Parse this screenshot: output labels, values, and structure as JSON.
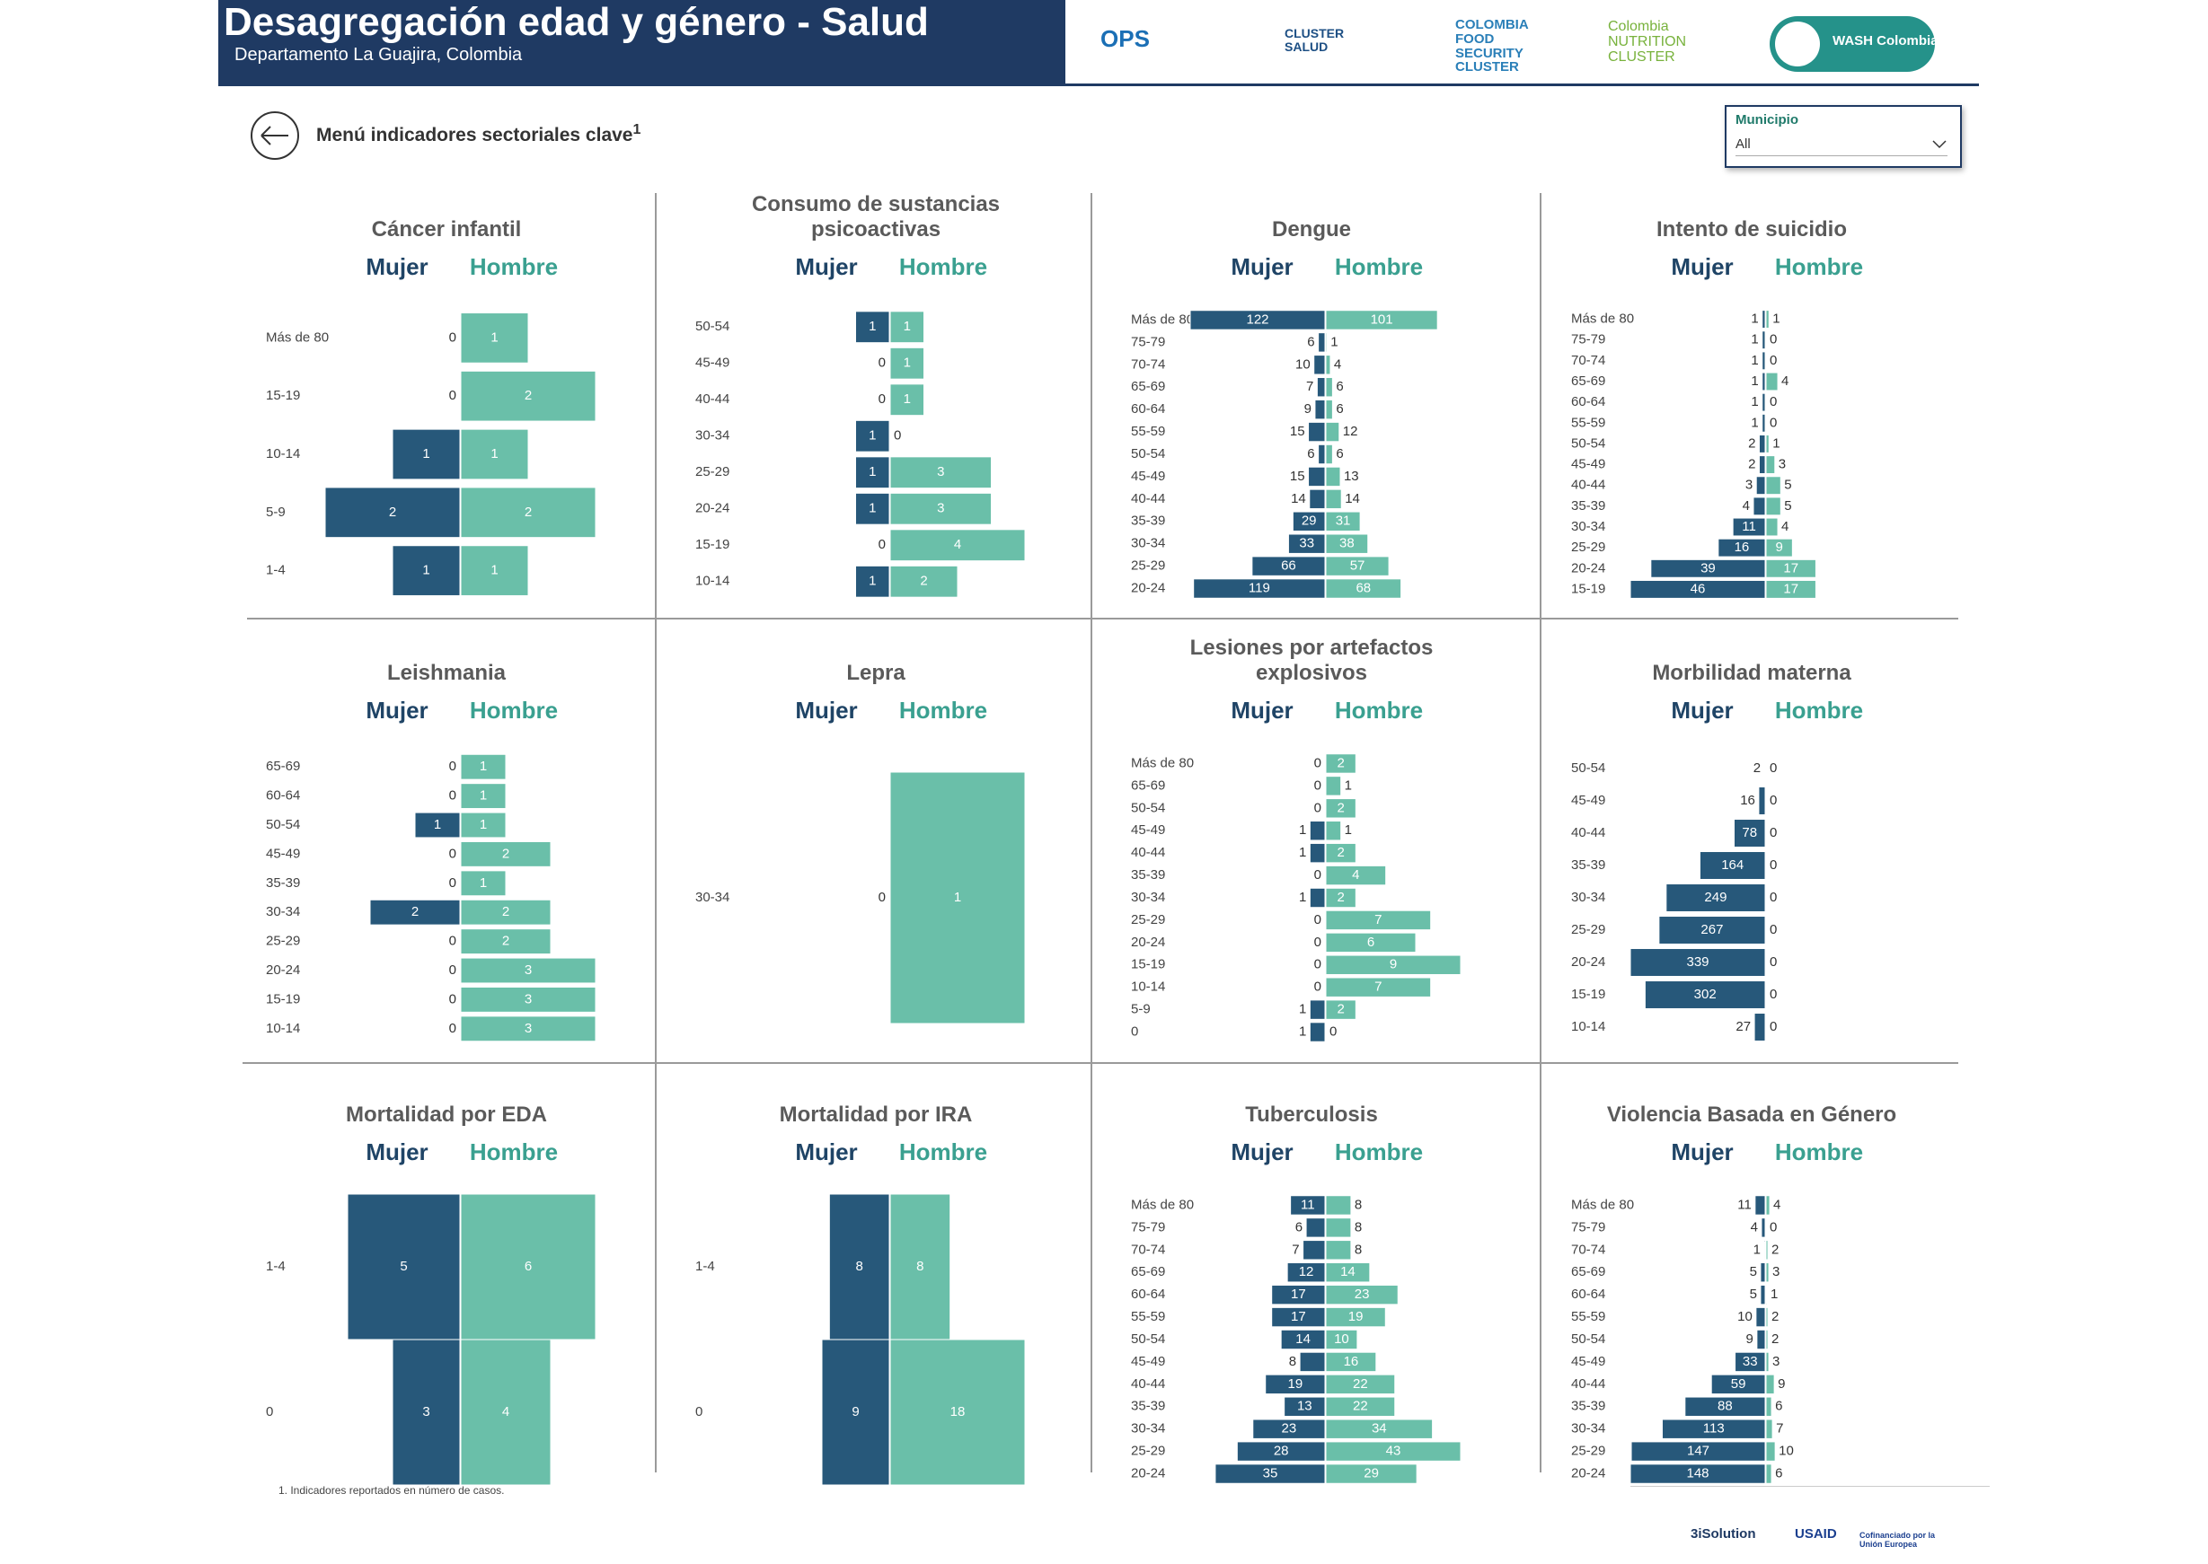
{
  "header": {
    "title": "Desagregación edad y género - Salud",
    "subtitle": "Departamento La Guajira, Colombia",
    "logos": [
      "OPS",
      "CLUSTER SALUD",
      "COLOMBIA FOOD SECURITY CLUSTER",
      "Colombia NUTRITION CLUSTER",
      "WASH Colombia"
    ]
  },
  "menu": {
    "label": "Menú indicadores sectoriales clave",
    "superscript": "1"
  },
  "filter": {
    "label": "Municipio",
    "value": "All"
  },
  "chart_data": [
    {
      "type": "butterfly",
      "title": "Cáncer infantil",
      "categories": [
        "Más de 80",
        "15-19",
        "10-14",
        "5-9",
        "1-4"
      ],
      "series": [
        {
          "name": "Mujer",
          "color": "#27587a",
          "values": [
            0,
            0,
            1,
            2,
            1
          ]
        },
        {
          "name": "Hombre",
          "color": "#6abfa9",
          "values": [
            1,
            2,
            1,
            2,
            1
          ]
        }
      ]
    },
    {
      "type": "butterfly",
      "title": "Consumo de sustancias psicoactivas",
      "categories": [
        "50-54",
        "45-49",
        "40-44",
        "30-34",
        "25-29",
        "20-24",
        "15-19",
        "10-14"
      ],
      "series": [
        {
          "name": "Mujer",
          "color": "#27587a",
          "values": [
            1,
            0,
            0,
            1,
            1,
            1,
            0,
            1
          ]
        },
        {
          "name": "Hombre",
          "color": "#6abfa9",
          "values": [
            1,
            1,
            1,
            0,
            3,
            3,
            4,
            2
          ]
        }
      ]
    },
    {
      "type": "butterfly",
      "title": "Dengue",
      "categories": [
        "Más de 80",
        "75-79",
        "70-74",
        "65-69",
        "60-64",
        "55-59",
        "50-54",
        "45-49",
        "40-44",
        "35-39",
        "30-34",
        "25-29",
        "20-24"
      ],
      "series": [
        {
          "name": "Mujer",
          "color": "#27587a",
          "values": [
            122,
            6,
            10,
            7,
            9,
            15,
            6,
            15,
            14,
            29,
            33,
            66,
            119
          ]
        },
        {
          "name": "Hombre",
          "color": "#6abfa9",
          "values": [
            101,
            1,
            4,
            6,
            6,
            12,
            6,
            13,
            14,
            31,
            38,
            57,
            68
          ]
        }
      ]
    },
    {
      "type": "butterfly",
      "title": "Intento de suicidio",
      "categories": [
        "Más de 80",
        "75-79",
        "70-74",
        "65-69",
        "60-64",
        "55-59",
        "50-54",
        "45-49",
        "40-44",
        "35-39",
        "30-34",
        "25-29",
        "20-24",
        "15-19"
      ],
      "series": [
        {
          "name": "Mujer",
          "color": "#27587a",
          "values": [
            1,
            1,
            1,
            1,
            1,
            1,
            2,
            2,
            3,
            4,
            11,
            16,
            39,
            46
          ]
        },
        {
          "name": "Hombre",
          "color": "#6abfa9",
          "values": [
            1,
            0,
            0,
            4,
            0,
            0,
            1,
            3,
            5,
            5,
            4,
            9,
            17,
            17
          ]
        }
      ]
    },
    {
      "type": "butterfly",
      "title": "Leishmania",
      "categories": [
        "65-69",
        "60-64",
        "50-54",
        "45-49",
        "35-39",
        "30-34",
        "25-29",
        "20-24",
        "15-19",
        "10-14"
      ],
      "series": [
        {
          "name": "Mujer",
          "color": "#27587a",
          "values": [
            0,
            0,
            1,
            0,
            0,
            2,
            0,
            0,
            0,
            0
          ]
        },
        {
          "name": "Hombre",
          "color": "#6abfa9",
          "values": [
            1,
            1,
            1,
            2,
            1,
            2,
            2,
            3,
            3,
            3
          ]
        }
      ]
    },
    {
      "type": "butterfly",
      "title": "Lepra",
      "categories": [
        "30-34"
      ],
      "series": [
        {
          "name": "Mujer",
          "color": "#27587a",
          "values": [
            0
          ]
        },
        {
          "name": "Hombre",
          "color": "#6abfa9",
          "values": [
            1
          ]
        }
      ]
    },
    {
      "type": "butterfly",
      "title": "Lesiones por artefactos explosivos",
      "categories": [
        "Más de 80",
        "65-69",
        "50-54",
        "45-49",
        "40-44",
        "35-39",
        "30-34",
        "25-29",
        "20-24",
        "15-19",
        "10-14",
        "5-9",
        "0"
      ],
      "series": [
        {
          "name": "Mujer",
          "color": "#27587a",
          "values": [
            0,
            0,
            0,
            1,
            1,
            0,
            1,
            0,
            0,
            0,
            0,
            1,
            1
          ]
        },
        {
          "name": "Hombre",
          "color": "#6abfa9",
          "values": [
            2,
            1,
            2,
            1,
            2,
            4,
            2,
            7,
            6,
            9,
            7,
            2,
            0
          ]
        }
      ]
    },
    {
      "type": "butterfly",
      "title": "Morbilidad materna",
      "categories": [
        "50-54",
        "45-49",
        "40-44",
        "35-39",
        "30-34",
        "25-29",
        "20-24",
        "15-19",
        "10-14"
      ],
      "series": [
        {
          "name": "Mujer",
          "color": "#27587a",
          "values": [
            2,
            16,
            78,
            164,
            249,
            267,
            339,
            302,
            27
          ]
        },
        {
          "name": "Hombre",
          "color": "#6abfa9",
          "values": [
            0,
            0,
            0,
            0,
            0,
            0,
            0,
            0,
            0
          ]
        }
      ]
    },
    {
      "type": "butterfly",
      "title": "Mortalidad por EDA",
      "categories": [
        "1-4",
        "0"
      ],
      "series": [
        {
          "name": "Mujer",
          "color": "#27587a",
          "values": [
            5,
            3
          ]
        },
        {
          "name": "Hombre",
          "color": "#6abfa9",
          "values": [
            6,
            4
          ]
        }
      ]
    },
    {
      "type": "butterfly",
      "title": "Mortalidad por IRA",
      "categories": [
        "1-4",
        "0"
      ],
      "series": [
        {
          "name": "Mujer",
          "color": "#27587a",
          "values": [
            8,
            9
          ]
        },
        {
          "name": "Hombre",
          "color": "#6abfa9",
          "values": [
            8,
            18
          ]
        }
      ]
    },
    {
      "type": "butterfly",
      "title": "Tuberculosis",
      "categories": [
        "Más de 80",
        "75-79",
        "70-74",
        "65-69",
        "60-64",
        "55-59",
        "50-54",
        "45-49",
        "40-44",
        "35-39",
        "30-34",
        "25-29",
        "20-24"
      ],
      "series": [
        {
          "name": "Mujer",
          "color": "#27587a",
          "values": [
            11,
            6,
            7,
            12,
            17,
            17,
            14,
            8,
            19,
            13,
            23,
            28,
            35
          ]
        },
        {
          "name": "Hombre",
          "color": "#6abfa9",
          "values": [
            8,
            8,
            8,
            14,
            23,
            19,
            10,
            16,
            22,
            22,
            34,
            43,
            29
          ]
        }
      ]
    },
    {
      "type": "butterfly",
      "title": "Violencia Basada en Género",
      "categories": [
        "Más de 80",
        "75-79",
        "70-74",
        "65-69",
        "60-64",
        "55-59",
        "50-54",
        "45-49",
        "40-44",
        "35-39",
        "30-34",
        "25-29",
        "20-24"
      ],
      "series": [
        {
          "name": "Mujer",
          "color": "#27587a",
          "values": [
            11,
            4,
            1,
            5,
            5,
            10,
            9,
            33,
            59,
            88,
            113,
            147,
            148
          ]
        },
        {
          "name": "Hombre",
          "color": "#6abfa9",
          "values": [
            4,
            0,
            2,
            3,
            1,
            2,
            2,
            3,
            9,
            6,
            7,
            10,
            6
          ]
        }
      ]
    }
  ],
  "footnote": "1. Indicadores reportados en número de casos.",
  "footer_logos": [
    "3iSolution",
    "USAID",
    "Cofinanciado por la Unión Europea"
  ]
}
